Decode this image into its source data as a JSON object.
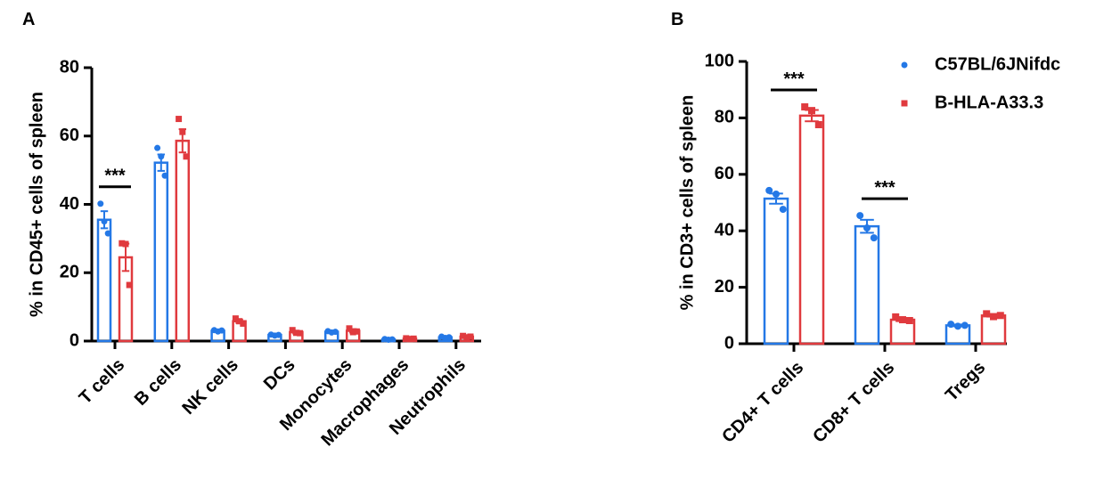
{
  "chart_data": [
    {
      "type": "bar",
      "panel_label": "A",
      "y_label": "% in CD45+ cells of spleen",
      "categories": [
        "T cells",
        "B cells",
        "NK cells",
        "DCs",
        "Monocytes",
        "Macrophages",
        "Neutrophils"
      ],
      "ylim": [
        0,
        80
      ],
      "yticks": [
        0,
        20,
        40,
        60,
        80
      ],
      "legend": false,
      "series": [
        {
          "name": "C57BL/6JNifdc",
          "color": "#2478e6",
          "marker": "circle",
          "values": [
            35.5,
            52.2,
            3.0,
            1.8,
            2.7,
            0.5,
            1.1
          ],
          "errors": [
            2.5,
            2.4,
            0.3,
            0.2,
            0.2,
            0.1,
            0.2
          ],
          "points": [
            [
              40.2,
              35.0,
              31.5
            ],
            [
              56.5,
              54.0,
              48.4
            ],
            [
              3.2,
              2.8,
              3.1
            ],
            [
              1.9,
              1.6,
              1.8
            ],
            [
              2.9,
              2.5,
              2.7
            ],
            [
              0.6,
              0.4,
              0.5
            ],
            [
              1.3,
              0.9,
              1.1
            ]
          ]
        },
        {
          "name": "B-HLA-A33.3",
          "color": "#e03a3e",
          "marker": "square",
          "values": [
            24.5,
            58.6,
            5.8,
            2.6,
            3.0,
            0.7,
            1.3
          ],
          "errors": [
            4.0,
            3.4,
            0.5,
            0.4,
            0.5,
            0.1,
            0.2
          ],
          "points": [
            [
              28.6,
              28.4,
              16.4
            ],
            [
              65.0,
              61.2,
              54.0
            ],
            [
              6.6,
              5.8,
              5.1
            ],
            [
              3.2,
              2.4,
              2.3
            ],
            [
              3.7,
              2.6,
              2.8
            ],
            [
              0.8,
              0.6,
              0.7
            ],
            [
              1.5,
              1.1,
              1.3
            ]
          ]
        }
      ],
      "annotations": [
        {
          "text": "***",
          "x": "T cells"
        }
      ]
    },
    {
      "type": "bar",
      "panel_label": "B",
      "y_label": "% in CD3+ cells of spleen",
      "categories": [
        "CD4+ T cells",
        "CD8+ T cells",
        "Tregs"
      ],
      "ylim": [
        0,
        100
      ],
      "yticks": [
        0,
        20,
        40,
        60,
        80,
        100
      ],
      "legend": "upper right",
      "series": [
        {
          "name": "C57BL/6JNifdc",
          "color": "#2478e6",
          "marker": "circle",
          "values": [
            51.4,
            41.6,
            6.5
          ],
          "errors": [
            1.8,
            2.3,
            0.3
          ],
          "points": [
            [
              54.3,
              53.0,
              47.6
            ],
            [
              45.4,
              41.0,
              37.5
            ],
            [
              6.9,
              6.2,
              6.5
            ]
          ]
        },
        {
          "name": "B-HLA-A33.3",
          "color": "#e03a3e",
          "marker": "square",
          "values": [
            80.8,
            8.5,
            10.0
          ],
          "errors": [
            2.0,
            0.5,
            0.4
          ],
          "points": [
            [
              83.9,
              82.6,
              77.6
            ],
            [
              9.5,
              8.5,
              8.2
            ],
            [
              10.6,
              9.6,
              10.0
            ]
          ]
        }
      ],
      "annotations": [
        {
          "text": "***",
          "x": "CD4+ T cells"
        },
        {
          "text": "***",
          "x": "CD8+ T cells"
        }
      ]
    }
  ]
}
